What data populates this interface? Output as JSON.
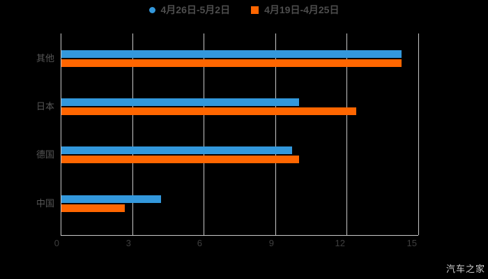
{
  "legend": {
    "items": [
      {
        "label": "4月26日-5月2日",
        "color": "#3398DC",
        "marker": "circle"
      },
      {
        "label": "4月19日-4月25日",
        "color": "#FF6600",
        "marker": "square"
      }
    ]
  },
  "watermark": "汽车之家",
  "colors": {
    "background": "#000000",
    "grid": "#c9c9c9",
    "axis": "#c9c9c9",
    "tick_label": "#3f3f3f",
    "category_label": "#565656",
    "legend_label": "#4d4d4d",
    "series_blue": "#3398DC",
    "series_orange": "#FF6600",
    "watermark": "#cfcfcf"
  },
  "chart_data": {
    "type": "bar",
    "orientation": "horizontal",
    "title": "",
    "xlabel": "",
    "ylabel": "",
    "categories": [
      "其他",
      "日本",
      "德国",
      "中国"
    ],
    "series": [
      {
        "name": "4月26日-5月2日",
        "color": "#3398DC",
        "marker": "circle",
        "values": [
          14.3,
          10.0,
          9.7,
          4.2
        ]
      },
      {
        "name": "4月19日-4月25日",
        "color": "#FF6600",
        "marker": "square",
        "values": [
          14.3,
          12.4,
          10.0,
          2.7
        ]
      }
    ],
    "xlim": [
      0,
      15
    ],
    "xticks": [
      0,
      3,
      6,
      9,
      12,
      15
    ],
    "grid": true,
    "legend_position": "top"
  }
}
